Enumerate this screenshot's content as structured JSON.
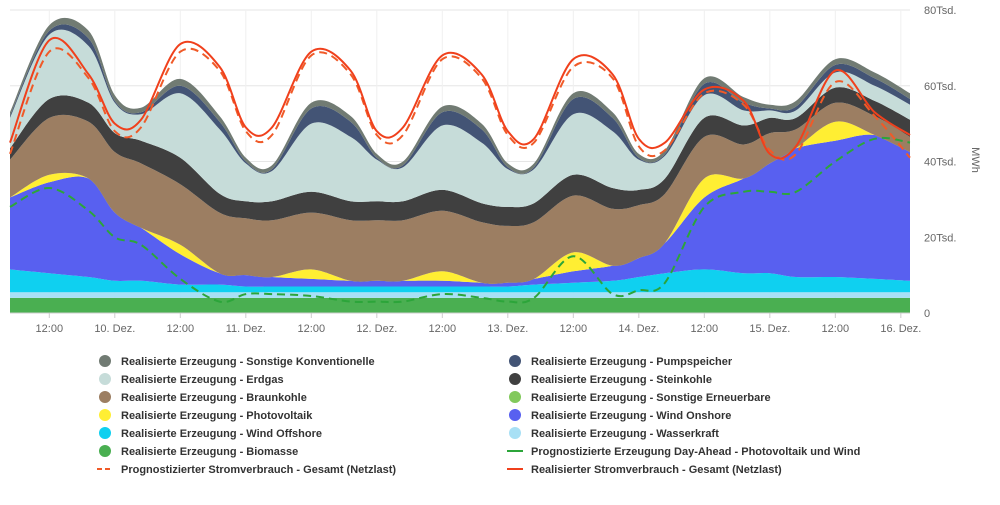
{
  "chart_data": {
    "type": "area",
    "x_ticks": [
      "12:00",
      "10. Dez.",
      "12:00",
      "11. Dez.",
      "12:00",
      "12. Dez.",
      "12:00",
      "13. Dez.",
      "12:00",
      "14. Dez.",
      "12:00",
      "15. Dez.",
      "12:00",
      "16. Dez."
    ],
    "x_tick_pos": [
      0.5,
      1,
      1.5,
      2,
      2.5,
      3,
      3.5,
      4,
      4.5,
      5,
      5.5,
      6,
      6.5,
      7
    ],
    "x_range": [
      0.2,
      7.07
    ],
    "y_ticks": [
      "0",
      "20Tsd.",
      "40Tsd.",
      "60Tsd.",
      "80Tsd."
    ],
    "ylim": [
      0,
      80000
    ],
    "ylabel": "MWh",
    "grid": true,
    "legend_position": "bottom",
    "x_days": [
      0.2,
      0.5,
      0.8,
      1.0,
      1.2,
      1.5,
      1.8,
      2.0,
      2.2,
      2.5,
      2.8,
      3.0,
      3.2,
      3.5,
      3.8,
      4.0,
      4.2,
      4.5,
      4.8,
      5.0,
      5.2,
      5.5,
      5.8,
      6.0,
      6.2,
      6.5,
      6.8,
      7.07
    ],
    "stack_order": [
      "Realisierte Erzeugung - Biomasse",
      "Realisierte Erzeugung - Wasserkraft",
      "Realisierte Erzeugung - Wind Offshore",
      "Realisierte Erzeugung - Wind Onshore",
      "Realisierte Erzeugung - Photovoltaik",
      "Realisierte Erzeugung - Braunkohle",
      "Realisierte Erzeugung - Steinkohle",
      "Realisierte Erzeugung - Erdgas",
      "Realisierte Erzeugung - Pumpspeicher",
      "Realisierte Erzeugung - Sonstige Konventionelle"
    ],
    "series": [
      {
        "name": "Realisierte Erzeugung - Sonstige Konventionelle",
        "color": "#717b73",
        "type": "area",
        "values": [
          1000,
          1500,
          2000,
          1500,
          1200,
          1800,
          1500,
          1000,
          1000,
          1500,
          1500,
          1000,
          1000,
          1500,
          1500,
          1000,
          1000,
          1500,
          1500,
          1000,
          1000,
          1500,
          1500,
          1000,
          1500,
          1500,
          1500,
          1500
        ]
      },
      {
        "name": "Realisierte Erzeugung - Pumpspeicher",
        "color": "#435475",
        "type": "area",
        "values": [
          500,
          1000,
          2000,
          500,
          500,
          2000,
          2000,
          500,
          500,
          4000,
          4000,
          500,
          500,
          3500,
          3500,
          500,
          500,
          4000,
          3500,
          500,
          500,
          3000,
          2000,
          500,
          1000,
          2000,
          2000,
          1500
        ]
      },
      {
        "name": "Realisierte Erzeugung - Erdgas",
        "color": "#c6dcd9",
        "type": "area",
        "values": [
          8000,
          17000,
          15000,
          8000,
          7000,
          17000,
          17000,
          10000,
          8000,
          18000,
          17000,
          11000,
          9000,
          17000,
          16000,
          10000,
          9000,
          16000,
          15000,
          8000,
          6000,
          6000,
          4000,
          2000,
          2000,
          4000,
          4000,
          4000
        ]
      },
      {
        "name": "Realisierte Erzeugung - Steinkohle",
        "color": "#404040",
        "type": "area",
        "values": [
          3000,
          5000,
          5000,
          5000,
          6000,
          7000,
          5000,
          4500,
          5000,
          5500,
          5000,
          5000,
          5000,
          5500,
          5000,
          5000,
          5000,
          5500,
          5500,
          4000,
          4000,
          5000,
          5000,
          4000,
          3000,
          4000,
          4000,
          4500
        ]
      },
      {
        "name": "Realisierte Erzeugung - Braunkohle",
        "color": "#9c7e62",
        "type": "area",
        "values": [
          10000,
          15000,
          15000,
          16000,
          17000,
          16000,
          16000,
          15000,
          15000,
          15000,
          16000,
          16000,
          16000,
          16000,
          16000,
          15000,
          15000,
          15000,
          15000,
          14000,
          13000,
          11000,
          9000,
          8000,
          5000,
          5000,
          5000,
          4000
        ]
      },
      {
        "name": "Realisierte Erzeugung - Photovoltaik",
        "color": "#ffee33",
        "type": "area",
        "values": [
          0,
          2000,
          0,
          0,
          0,
          2500,
          0,
          0,
          0,
          2500,
          0,
          0,
          0,
          2500,
          0,
          0,
          0,
          5000,
          0,
          0,
          0,
          5000,
          0,
          0,
          0,
          5000,
          0,
          0
        ]
      },
      {
        "name": "Realisierte Erzeugung - Wind Onshore",
        "color": "#5860f0",
        "type": "area",
        "values": [
          19000,
          24000,
          26000,
          18000,
          14000,
          8000,
          3000,
          3000,
          2500,
          2000,
          1500,
          1500,
          1500,
          1500,
          1000,
          1000,
          1500,
          3000,
          4000,
          5000,
          8000,
          19000,
          25000,
          29000,
          34000,
          36000,
          38000,
          34000
        ]
      },
      {
        "name": "Realisierte Erzeugung - Wind Offshore",
        "color": "#0fd0f0",
        "type": "area",
        "values": [
          6000,
          5000,
          4000,
          3000,
          3000,
          2000,
          2000,
          1500,
          1500,
          1500,
          1500,
          1500,
          1500,
          1500,
          1500,
          1500,
          2000,
          2500,
          3000,
          4000,
          5000,
          6000,
          5000,
          5000,
          4000,
          4000,
          3500,
          3000
        ]
      },
      {
        "name": "Realisierte Erzeugung - Wasserkraft",
        "color": "#a8e0f5",
        "type": "area",
        "values": [
          1500,
          1500,
          1500,
          1500,
          1500,
          1500,
          1500,
          1500,
          1500,
          1500,
          1500,
          1500,
          1500,
          1500,
          1500,
          1500,
          1500,
          1500,
          1500,
          1500,
          1500,
          1500,
          1500,
          1500,
          1500,
          1500,
          1500,
          1500
        ]
      },
      {
        "name": "Realisierte Erzeugung - Biomasse",
        "color": "#4aaf51",
        "type": "area",
        "values": [
          4000,
          4000,
          4000,
          4000,
          4000,
          4000,
          4000,
          4000,
          4000,
          4000,
          4000,
          4000,
          4000,
          4000,
          4000,
          4000,
          4000,
          4000,
          4000,
          4000,
          4000,
          4000,
          4000,
          4000,
          4000,
          4000,
          4000,
          4000
        ]
      },
      {
        "name": "Realisierte Erzeugung - Sonstige Erneuerbare",
        "color": "#82c95c",
        "type": "area",
        "values": [
          300,
          300,
          300,
          300,
          300,
          300,
          300,
          300,
          300,
          300,
          300,
          300,
          300,
          300,
          300,
          300,
          300,
          300,
          300,
          300,
          300,
          300,
          300,
          300,
          300,
          300,
          300,
          300
        ]
      },
      {
        "name": "Prognostizierte Erzeugung Day-Ahead - Photovoltaik und Wind",
        "color": "#2ca53a",
        "type": "line",
        "dash": "dashed",
        "values": [
          28000,
          33000,
          27000,
          20000,
          18000,
          9000,
          3000,
          5000,
          5000,
          4500,
          3000,
          3000,
          3000,
          5000,
          4000,
          3000,
          4000,
          15000,
          5000,
          6000,
          8000,
          28000,
          32000,
          32000,
          32000,
          40000,
          46000,
          45000
        ]
      },
      {
        "name": "Prognostizierter Stromverbrauch - Gesamt (Netzlast)",
        "color": "#f05a28",
        "type": "line",
        "dash": "dashed",
        "values": [
          42000,
          69000,
          62000,
          48000,
          49000,
          69000,
          64000,
          48000,
          47000,
          68000,
          63000,
          47000,
          47000,
          67000,
          62000,
          47000,
          45000,
          65000,
          62000,
          44000,
          43000,
          58000,
          55000,
          43000,
          42000,
          61000,
          52000,
          41000
        ]
      },
      {
        "name": "Realisierter Stromverbrauch - Gesamt (Netzlast)",
        "color": "#f0401c",
        "type": "line",
        "dash": "solid",
        "values": [
          45000,
          72000,
          63000,
          50000,
          51000,
          71000,
          65000,
          49000,
          49000,
          69000,
          64000,
          48000,
          49000,
          68000,
          63000,
          48000,
          46000,
          67000,
          63000,
          46000,
          45000,
          59000,
          56000,
          42000,
          44000,
          64000,
          53000,
          47000
        ]
      }
    ],
    "legend": [
      {
        "label": "Realisierte Erzeugung - Sonstige Konventionelle",
        "color": "#717b73",
        "marker": "circle"
      },
      {
        "label": "Realisierte Erzeugung - Pumpspeicher",
        "color": "#435475",
        "marker": "circle"
      },
      {
        "label": "Realisierte Erzeugung - Erdgas",
        "color": "#c6dcd9",
        "marker": "circle"
      },
      {
        "label": "Realisierte Erzeugung - Steinkohle",
        "color": "#404040",
        "marker": "circle"
      },
      {
        "label": "Realisierte Erzeugung - Braunkohle",
        "color": "#9c7e62",
        "marker": "circle"
      },
      {
        "label": "Realisierte Erzeugung - Sonstige Erneuerbare",
        "color": "#82c95c",
        "marker": "circle"
      },
      {
        "label": "Realisierte Erzeugung - Photovoltaik",
        "color": "#ffee33",
        "marker": "circle"
      },
      {
        "label": "Realisierte Erzeugung - Wind Onshore",
        "color": "#5860f0",
        "marker": "circle"
      },
      {
        "label": "Realisierte Erzeugung - Wind Offshore",
        "color": "#0fd0f0",
        "marker": "circle"
      },
      {
        "label": "Realisierte Erzeugung - Wasserkraft",
        "color": "#a8e0f5",
        "marker": "circle"
      },
      {
        "label": "Realisierte Erzeugung - Biomasse",
        "color": "#4aaf51",
        "marker": "circle"
      },
      {
        "label": "Prognostizierte Erzeugung Day-Ahead - Photovoltaik und Wind",
        "color": "#2ca53a",
        "marker": "line"
      },
      {
        "label": "Prognostizierter Stromverbrauch - Gesamt (Netzlast)",
        "color": "#f05a28",
        "marker": "dashed-line"
      },
      {
        "label": "Realisierter Stromverbrauch - Gesamt (Netzlast)",
        "color": "#f0401c",
        "marker": "line"
      }
    ]
  }
}
